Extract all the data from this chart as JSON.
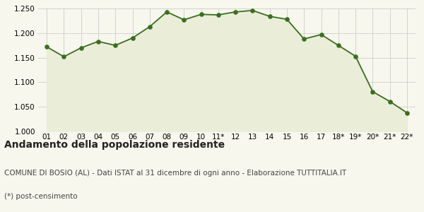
{
  "x_labels": [
    "01",
    "02",
    "03",
    "04",
    "05",
    "06",
    "07",
    "08",
    "09",
    "10",
    "11*",
    "12",
    "13",
    "14",
    "15",
    "16",
    "17",
    "18*",
    "19*",
    "20*",
    "21*",
    "22*"
  ],
  "y_values": [
    1172,
    1152,
    1170,
    1183,
    1175,
    1190,
    1213,
    1243,
    1227,
    1238,
    1237,
    1243,
    1246,
    1234,
    1228,
    1188,
    1197,
    1175,
    1153,
    1081,
    1061,
    1038
  ],
  "line_color": "#3a6e1f",
  "fill_color": "#eaedd8",
  "marker_color": "#3a6e1f",
  "bg_color": "#f7f7ee",
  "grid_color": "#cccccc",
  "ylim": [
    1000,
    1250
  ],
  "yticks": [
    1000,
    1050,
    1100,
    1150,
    1200,
    1250
  ],
  "title": "Andamento della popolazione residente",
  "subtitle": "COMUNE DI BOSIO (AL) - Dati ISTAT al 31 dicembre di ogni anno - Elaborazione TUTTITALIA.IT",
  "footnote": "(*) post-censimento",
  "title_fontsize": 10,
  "subtitle_fontsize": 7.5,
  "footnote_fontsize": 7.5
}
